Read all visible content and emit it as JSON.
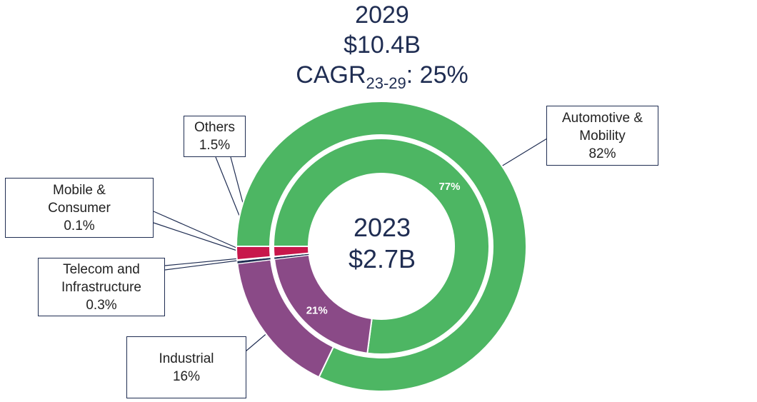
{
  "header": {
    "year": "2029",
    "total": "$10.4B",
    "cagr_prefix": "CAGR",
    "cagr_sub": "23-29",
    "cagr_suffix": ": 25%"
  },
  "center": {
    "year": "2023",
    "total": "$2.7B"
  },
  "chart_data": {
    "type": "pie",
    "subtype": "nested-donut",
    "title": "2029 $10.4B CAGR23-29: 25%",
    "series": [
      {
        "name": "2029",
        "ring": "outer",
        "total": "$10.4B",
        "categories": [
          "Automotive & Mobility",
          "Industrial",
          "Telecom and Infrastructure",
          "Mobile & Consumer",
          "Others"
        ],
        "values": [
          82,
          16,
          0.3,
          0.1,
          1.5
        ],
        "labels": [
          "82%",
          "16%",
          "0.3%",
          "0.1%",
          "1.5%"
        ],
        "colors": [
          "#4db663",
          "#8a4a87",
          "#1f2d52",
          "#e7e7e7",
          "#c8174b"
        ]
      },
      {
        "name": "2023",
        "ring": "inner",
        "total": "$2.7B",
        "categories": [
          "Automotive & Mobility",
          "Industrial",
          "Telecom and Infrastructure",
          "Mobile & Consumer",
          "Others"
        ],
        "values": [
          77,
          21,
          0.3,
          0.1,
          1.5
        ],
        "labels": [
          "77%",
          "21%",
          "",
          "",
          ""
        ],
        "colors": [
          "#4db663",
          "#8a4a87",
          "#1f2d52",
          "#e7e7e7",
          "#c8174b"
        ]
      }
    ],
    "callouts": [
      {
        "line1": "Automotive &",
        "line2": "Mobility",
        "value": "82%"
      },
      {
        "line1": "Industrial",
        "line2": "",
        "value": "16%"
      },
      {
        "line1": "Telecom and",
        "line2": "Infrastructure",
        "value": "0.3%"
      },
      {
        "line1": "Mobile &",
        "line2": "Consumer",
        "value": "0.1%"
      },
      {
        "line1": "Others",
        "line2": "",
        "value": "1.5%"
      }
    ]
  }
}
